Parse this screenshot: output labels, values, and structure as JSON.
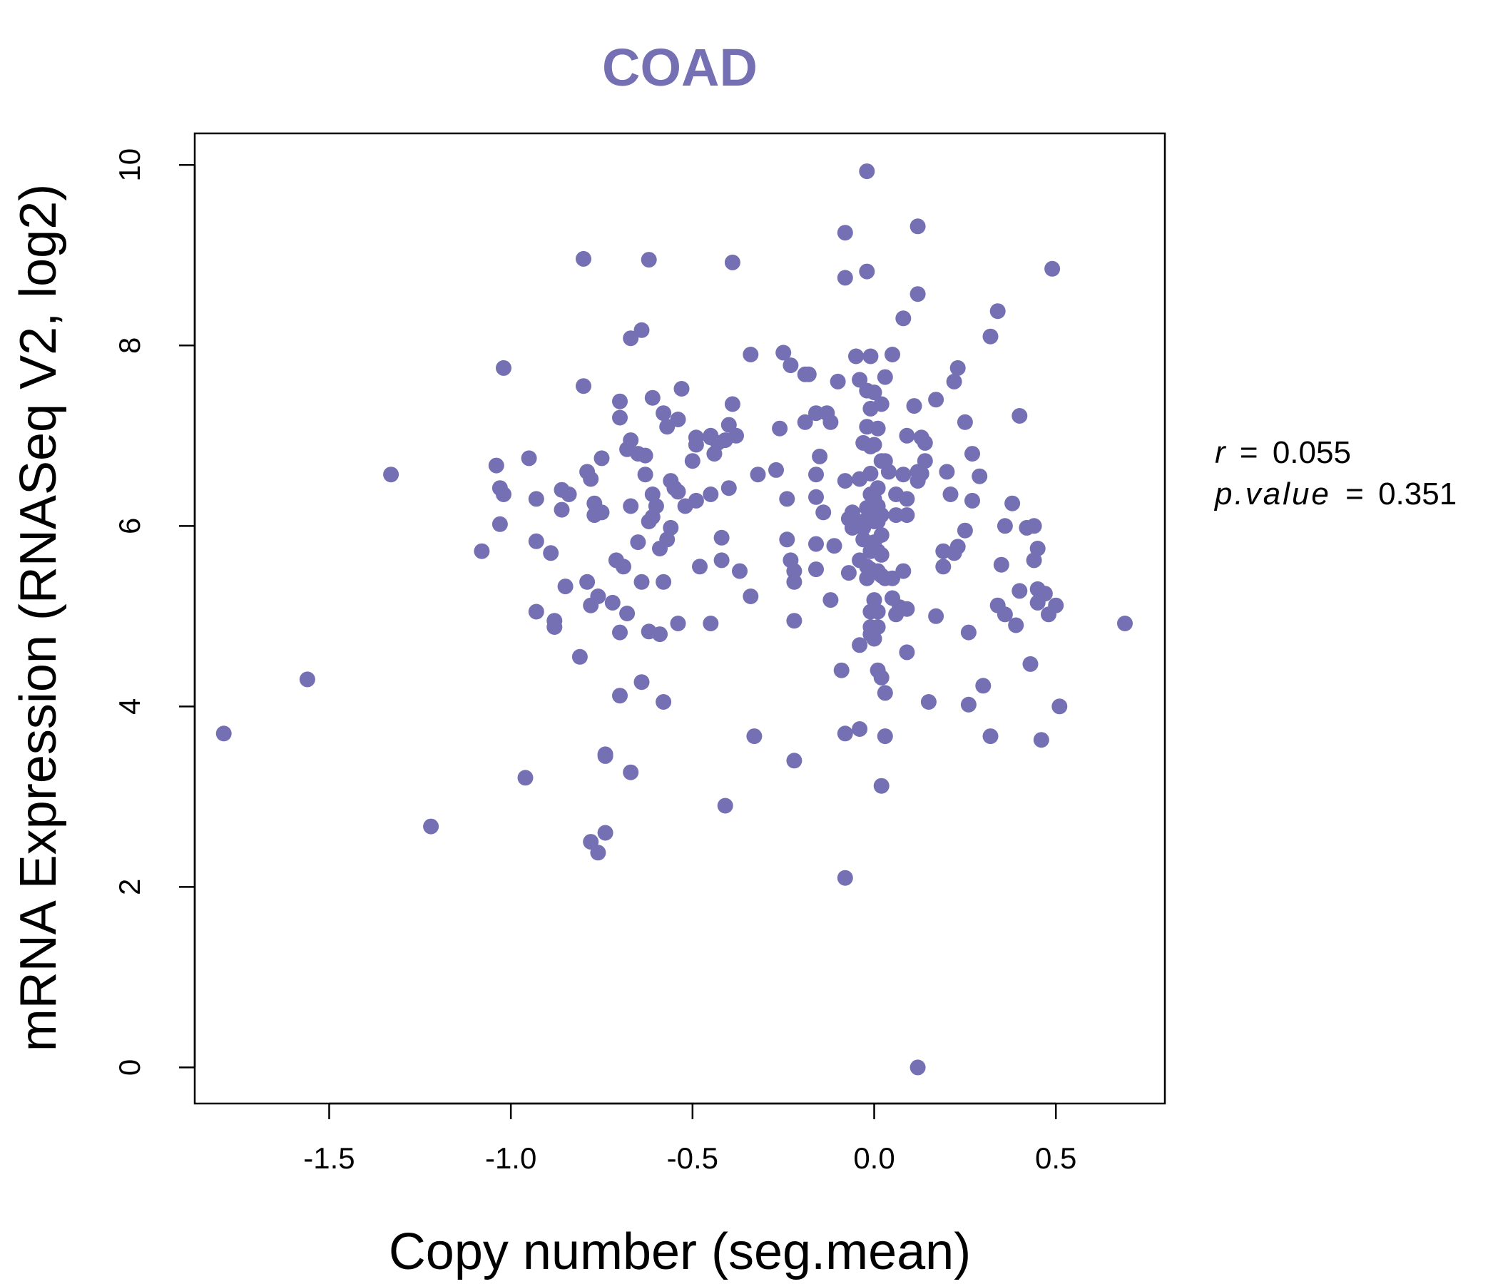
{
  "colors": {
    "point": "#7570b3",
    "title": "#7570b3",
    "axis": "#000000",
    "background": "#ffffff"
  },
  "chart_data": {
    "type": "scatter",
    "title": "COAD",
    "xlabel": "Copy number (seg.mean)",
    "ylabel": "mRNA Expression (RNASeq V2, log2)",
    "xlim": [
      -1.87,
      0.8
    ],
    "ylim": [
      -0.4,
      10.35
    ],
    "x_ticks": [
      -1.5,
      -1.0,
      -0.5,
      0.0,
      0.5
    ],
    "x_tick_labels": [
      "-1.5",
      "-1.0",
      "-0.5",
      "0.0",
      "0.5"
    ],
    "y_ticks": [
      0,
      2,
      4,
      6,
      8,
      10
    ],
    "y_tick_labels": [
      "0",
      "2",
      "4",
      "6",
      "8",
      "10"
    ],
    "stats": {
      "r_label": "r",
      "r_value": "0.055",
      "p_label": "p.value",
      "p_value": "0.351"
    },
    "series": [
      {
        "name": "samples",
        "points": [
          [
            -1.79,
            3.7
          ],
          [
            -1.56,
            4.3
          ],
          [
            -1.33,
            6.57
          ],
          [
            -1.22,
            2.67
          ],
          [
            -1.08,
            5.72
          ],
          [
            -1.04,
            6.67
          ],
          [
            -1.03,
            6.42
          ],
          [
            -1.03,
            6.02
          ],
          [
            -1.02,
            7.75
          ],
          [
            -1.02,
            6.35
          ],
          [
            -0.96,
            3.21
          ],
          [
            -0.95,
            6.75
          ],
          [
            -0.93,
            6.3
          ],
          [
            -0.93,
            5.83
          ],
          [
            -0.93,
            5.05
          ],
          [
            -0.89,
            5.7
          ],
          [
            -0.88,
            4.95
          ],
          [
            -0.88,
            4.88
          ],
          [
            -0.86,
            6.4
          ],
          [
            -0.86,
            6.18
          ],
          [
            -0.85,
            5.33
          ],
          [
            -0.84,
            6.35
          ],
          [
            -0.81,
            4.55
          ],
          [
            -0.8,
            8.96
          ],
          [
            -0.8,
            7.55
          ],
          [
            -0.79,
            6.6
          ],
          [
            -0.79,
            5.38
          ],
          [
            -0.78,
            6.52
          ],
          [
            -0.78,
            5.12
          ],
          [
            -0.78,
            2.5
          ],
          [
            -0.77,
            6.25
          ],
          [
            -0.77,
            6.12
          ],
          [
            -0.76,
            5.22
          ],
          [
            -0.76,
            2.38
          ],
          [
            -0.75,
            6.75
          ],
          [
            -0.75,
            6.15
          ],
          [
            -0.74,
            3.47
          ],
          [
            -0.74,
            3.45
          ],
          [
            -0.74,
            2.6
          ],
          [
            -0.72,
            5.15
          ],
          [
            -0.71,
            5.62
          ],
          [
            -0.7,
            7.38
          ],
          [
            -0.7,
            7.2
          ],
          [
            -0.7,
            4.82
          ],
          [
            -0.7,
            4.12
          ],
          [
            -0.69,
            5.55
          ],
          [
            -0.68,
            6.85
          ],
          [
            -0.68,
            5.03
          ],
          [
            -0.67,
            8.08
          ],
          [
            -0.67,
            6.95
          ],
          [
            -0.67,
            6.22
          ],
          [
            -0.67,
            3.27
          ],
          [
            -0.65,
            6.8
          ],
          [
            -0.65,
            5.82
          ],
          [
            -0.64,
            8.17
          ],
          [
            -0.64,
            5.38
          ],
          [
            -0.64,
            4.27
          ],
          [
            -0.63,
            6.78
          ],
          [
            -0.63,
            6.57
          ],
          [
            -0.62,
            8.95
          ],
          [
            -0.62,
            6.05
          ],
          [
            -0.62,
            4.83
          ],
          [
            -0.61,
            7.42
          ],
          [
            -0.61,
            6.35
          ],
          [
            -0.61,
            6.1
          ],
          [
            -0.6,
            6.22
          ],
          [
            -0.59,
            5.75
          ],
          [
            -0.59,
            4.8
          ],
          [
            -0.58,
            7.25
          ],
          [
            -0.58,
            5.38
          ],
          [
            -0.58,
            4.05
          ],
          [
            -0.57,
            7.1
          ],
          [
            -0.57,
            5.85
          ],
          [
            -0.56,
            6.5
          ],
          [
            -0.56,
            5.98
          ],
          [
            -0.55,
            6.42
          ],
          [
            -0.54,
            7.18
          ],
          [
            -0.54,
            6.38
          ],
          [
            -0.54,
            4.92
          ],
          [
            -0.53,
            7.52
          ],
          [
            -0.52,
            6.22
          ],
          [
            -0.5,
            6.72
          ],
          [
            -0.49,
            6.28
          ],
          [
            -0.49,
            6.98
          ],
          [
            -0.49,
            6.9
          ],
          [
            -0.48,
            5.55
          ],
          [
            -0.45,
            7.0
          ],
          [
            -0.45,
            6.98
          ],
          [
            -0.45,
            6.35
          ],
          [
            -0.45,
            4.92
          ],
          [
            -0.44,
            6.8
          ],
          [
            -0.43,
            6.92
          ],
          [
            -0.42,
            5.87
          ],
          [
            -0.42,
            5.62
          ],
          [
            -0.41,
            6.95
          ],
          [
            -0.41,
            2.9
          ],
          [
            -0.4,
            7.12
          ],
          [
            -0.4,
            6.42
          ],
          [
            -0.39,
            8.92
          ],
          [
            -0.39,
            7.35
          ],
          [
            -0.38,
            7.0
          ],
          [
            -0.37,
            5.5
          ],
          [
            -0.34,
            7.9
          ],
          [
            -0.34,
            5.22
          ],
          [
            -0.33,
            3.67
          ],
          [
            -0.32,
            6.57
          ],
          [
            -0.27,
            6.62
          ],
          [
            -0.26,
            7.08
          ],
          [
            -0.25,
            7.92
          ],
          [
            -0.24,
            6.3
          ],
          [
            -0.24,
            5.85
          ],
          [
            -0.23,
            7.78
          ],
          [
            -0.23,
            5.62
          ],
          [
            -0.22,
            5.5
          ],
          [
            -0.22,
            5.38
          ],
          [
            -0.22,
            4.95
          ],
          [
            -0.22,
            3.4
          ],
          [
            -0.19,
            7.68
          ],
          [
            -0.19,
            7.15
          ],
          [
            -0.18,
            7.68
          ],
          [
            -0.16,
            7.25
          ],
          [
            -0.16,
            6.57
          ],
          [
            -0.16,
            6.32
          ],
          [
            -0.16,
            5.8
          ],
          [
            -0.16,
            5.52
          ],
          [
            -0.15,
            6.77
          ],
          [
            -0.14,
            6.15
          ],
          [
            -0.13,
            7.25
          ],
          [
            -0.12,
            7.15
          ],
          [
            -0.12,
            5.18
          ],
          [
            -0.11,
            5.78
          ],
          [
            -0.1,
            7.6
          ],
          [
            -0.09,
            4.4
          ],
          [
            -0.08,
            9.25
          ],
          [
            -0.08,
            8.75
          ],
          [
            -0.08,
            6.5
          ],
          [
            -0.08,
            3.7
          ],
          [
            -0.08,
            2.1
          ],
          [
            -0.07,
            6.08
          ],
          [
            -0.07,
            5.48
          ],
          [
            -0.06,
            6.15
          ],
          [
            -0.06,
            5.98
          ],
          [
            -0.05,
            7.88
          ],
          [
            -0.05,
            6.05
          ],
          [
            -0.04,
            7.62
          ],
          [
            -0.04,
            6.52
          ],
          [
            -0.04,
            5.62
          ],
          [
            -0.04,
            4.68
          ],
          [
            -0.04,
            3.75
          ],
          [
            -0.03,
            6.92
          ],
          [
            -0.03,
            6.05
          ],
          [
            -0.03,
            5.98
          ],
          [
            -0.03,
            5.85
          ],
          [
            -0.02,
            8.82
          ],
          [
            -0.02,
            7.5
          ],
          [
            -0.02,
            7.1
          ],
          [
            -0.02,
            6.2
          ],
          [
            -0.02,
            5.55
          ],
          [
            -0.02,
            5.42
          ],
          [
            -0.02,
            9.93
          ],
          [
            -0.01,
            7.88
          ],
          [
            -0.01,
            7.3
          ],
          [
            -0.01,
            6.88
          ],
          [
            -0.01,
            6.58
          ],
          [
            -0.01,
            6.35
          ],
          [
            -0.01,
            6.12
          ],
          [
            -0.01,
            5.72
          ],
          [
            -0.01,
            5.52
          ],
          [
            -0.01,
            5.05
          ],
          [
            -0.01,
            4.88
          ],
          [
            -0.01,
            4.8
          ],
          [
            0.0,
            7.48
          ],
          [
            0.0,
            6.9
          ],
          [
            0.0,
            6.3
          ],
          [
            0.0,
            6.05
          ],
          [
            0.0,
            5.82
          ],
          [
            0.0,
            5.18
          ],
          [
            0.0,
            4.75
          ],
          [
            0.01,
            7.08
          ],
          [
            0.01,
            6.42
          ],
          [
            0.01,
            6.22
          ],
          [
            0.01,
            6.05
          ],
          [
            0.01,
            5.72
          ],
          [
            0.01,
            5.5
          ],
          [
            0.01,
            5.05
          ],
          [
            0.01,
            4.88
          ],
          [
            0.01,
            4.4
          ],
          [
            0.02,
            7.35
          ],
          [
            0.02,
            6.72
          ],
          [
            0.02,
            6.12
          ],
          [
            0.02,
            5.9
          ],
          [
            0.02,
            5.68
          ],
          [
            0.02,
            5.45
          ],
          [
            0.02,
            4.32
          ],
          [
            0.02,
            3.12
          ],
          [
            0.03,
            7.65
          ],
          [
            0.03,
            6.72
          ],
          [
            0.03,
            5.42
          ],
          [
            0.03,
            4.15
          ],
          [
            0.03,
            3.67
          ],
          [
            0.04,
            6.6
          ],
          [
            0.05,
            7.9
          ],
          [
            0.05,
            5.2
          ],
          [
            0.05,
            5.42
          ],
          [
            0.06,
            6.35
          ],
          [
            0.06,
            6.12
          ],
          [
            0.06,
            5.02
          ],
          [
            0.07,
            5.1
          ],
          [
            0.08,
            8.3
          ],
          [
            0.08,
            6.57
          ],
          [
            0.08,
            5.5
          ],
          [
            0.09,
            7.0
          ],
          [
            0.09,
            6.12
          ],
          [
            0.09,
            6.3
          ],
          [
            0.09,
            5.08
          ],
          [
            0.09,
            4.6
          ],
          [
            0.11,
            7.33
          ],
          [
            0.12,
            9.32
          ],
          [
            0.12,
            8.57
          ],
          [
            0.12,
            6.6
          ],
          [
            0.12,
            6.5
          ],
          [
            0.12,
            0.0
          ],
          [
            0.13,
            6.58
          ],
          [
            0.13,
            6.98
          ],
          [
            0.14,
            6.92
          ],
          [
            0.14,
            6.72
          ],
          [
            0.15,
            4.05
          ],
          [
            0.17,
            7.4
          ],
          [
            0.17,
            5.0
          ],
          [
            0.19,
            5.72
          ],
          [
            0.19,
            5.55
          ],
          [
            0.2,
            6.6
          ],
          [
            0.21,
            6.35
          ],
          [
            0.22,
            7.6
          ],
          [
            0.22,
            5.7
          ],
          [
            0.23,
            7.75
          ],
          [
            0.23,
            5.77
          ],
          [
            0.25,
            7.15
          ],
          [
            0.25,
            5.95
          ],
          [
            0.26,
            4.82
          ],
          [
            0.26,
            4.02
          ],
          [
            0.27,
            6.8
          ],
          [
            0.27,
            6.28
          ],
          [
            0.29,
            6.55
          ],
          [
            0.3,
            4.23
          ],
          [
            0.32,
            8.1
          ],
          [
            0.32,
            3.67
          ],
          [
            0.34,
            8.38
          ],
          [
            0.34,
            5.12
          ],
          [
            0.35,
            5.57
          ],
          [
            0.36,
            6.0
          ],
          [
            0.36,
            5.02
          ],
          [
            0.38,
            6.25
          ],
          [
            0.39,
            4.9
          ],
          [
            0.4,
            7.22
          ],
          [
            0.4,
            5.28
          ],
          [
            0.42,
            5.98
          ],
          [
            0.43,
            4.47
          ],
          [
            0.44,
            6.0
          ],
          [
            0.44,
            5.62
          ],
          [
            0.45,
            5.75
          ],
          [
            0.45,
            5.3
          ],
          [
            0.45,
            5.15
          ],
          [
            0.46,
            3.63
          ],
          [
            0.47,
            5.25
          ],
          [
            0.48,
            5.02
          ],
          [
            0.49,
            8.85
          ],
          [
            0.5,
            5.12
          ],
          [
            0.51,
            4.0
          ],
          [
            0.69,
            4.92
          ]
        ]
      }
    ]
  }
}
